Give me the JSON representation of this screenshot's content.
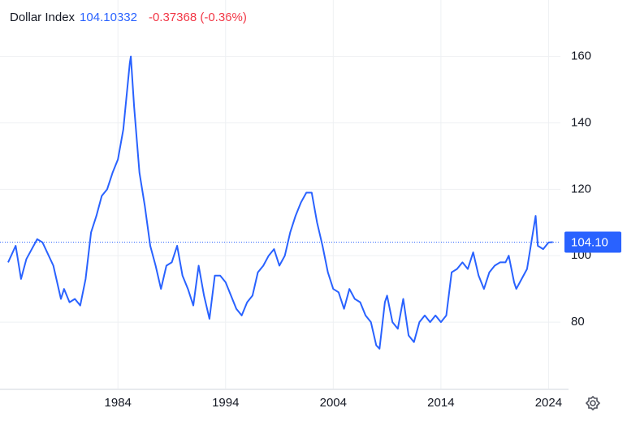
{
  "chart_data": {
    "type": "line",
    "title": "Dollar Index",
    "price": "104.10332",
    "change": "-0.37368 (-0.36%)",
    "color": "#2962ff",
    "x": [
      1973.8,
      1974.5,
      1975,
      1975.5,
      1976.5,
      1977,
      1978,
      1978.7,
      1979,
      1979.5,
      1980,
      1980.5,
      1981,
      1981.5,
      1982,
      1982.5,
      1983,
      1983.5,
      1984,
      1984.5,
      1985.1,
      1985.2,
      1985.5,
      1986,
      1986.5,
      1987,
      1987.5,
      1988,
      1988.5,
      1989,
      1989.5,
      1990,
      1990.5,
      1991,
      1991.5,
      1992,
      1992.5,
      1993,
      1993.5,
      1994,
      1994.5,
      1995,
      1995.5,
      1996,
      1996.5,
      1997,
      1997.5,
      1998,
      1998.5,
      1999,
      1999.5,
      2000,
      2000.5,
      2001,
      2001.5,
      2002,
      2002.5,
      2003,
      2003.5,
      2004,
      2004.5,
      2005,
      2005.5,
      2006,
      2006.5,
      2007,
      2007.5,
      2008,
      2008.3,
      2008.8,
      2009,
      2009.5,
      2010,
      2010.5,
      2011,
      2011.5,
      2012,
      2012.5,
      2013,
      2013.5,
      2014,
      2014.5,
      2015,
      2015.5,
      2016,
      2016.5,
      2017,
      2017.5,
      2018,
      2018.5,
      2019,
      2019.5,
      2020,
      2020.3,
      2020.8,
      2021,
      2021.5,
      2022,
      2022.8,
      2023,
      2023.5,
      2024,
      2024.4
    ],
    "values": [
      98,
      103,
      93,
      99,
      105,
      104,
      97,
      87,
      90,
      86,
      87,
      85,
      93,
      107,
      112,
      118,
      120,
      125,
      129,
      138,
      158,
      160,
      145,
      125,
      115,
      103,
      97,
      90,
      97,
      98,
      103,
      94,
      90,
      85,
      97,
      88,
      81,
      94,
      94,
      92,
      88,
      84,
      82,
      86,
      88,
      95,
      97,
      100,
      102,
      97,
      100,
      107,
      112,
      116,
      119,
      119,
      110,
      103,
      95,
      90,
      89,
      84,
      90,
      87,
      86,
      82,
      80,
      73,
      72,
      86,
      88,
      80,
      78,
      87,
      76,
      74,
      80,
      82,
      80,
      82,
      80,
      82,
      95,
      96,
      98,
      96,
      101,
      94,
      90,
      95,
      97,
      98,
      98,
      100,
      92,
      90,
      93,
      96,
      112,
      103,
      102,
      104,
      104.1
    ],
    "last_value": {
      "value": 104.1,
      "label": "104.10"
    },
    "xlim": [
      1973.8,
      2025.1
    ],
    "xticks": [
      1984,
      1994,
      2004,
      2014,
      2024
    ],
    "ylim": [
      60,
      177
    ],
    "yticks": [
      80,
      100,
      120,
      140,
      160
    ],
    "grid": true
  }
}
